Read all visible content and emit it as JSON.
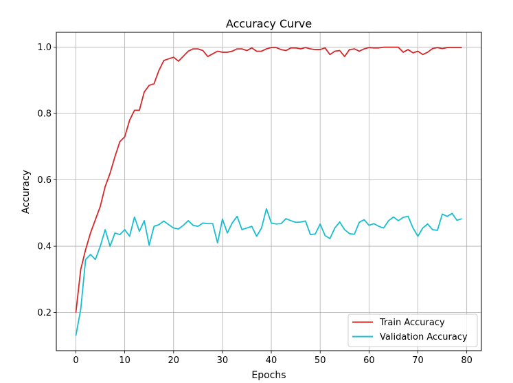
{
  "chart_data": {
    "type": "line",
    "title": "Accuracy Curve",
    "xlabel": "Epochs",
    "ylabel": "Accuracy",
    "xlim": [
      -4,
      83
    ],
    "ylim": [
      0.085,
      1.045
    ],
    "xticks": [
      0,
      10,
      20,
      30,
      40,
      50,
      60,
      70,
      80
    ],
    "yticks": [
      0.2,
      0.4,
      0.6,
      0.8,
      1.0
    ],
    "xtick_labels": [
      "0",
      "10",
      "20",
      "30",
      "40",
      "50",
      "60",
      "70",
      "80"
    ],
    "ytick_labels": [
      "0.2",
      "0.4",
      "0.6",
      "0.8",
      "1.0"
    ],
    "grid": true,
    "legend_position": "lower-right",
    "x": [
      0,
      1,
      2,
      3,
      4,
      5,
      6,
      7,
      8,
      9,
      10,
      11,
      12,
      13,
      14,
      15,
      16,
      17,
      18,
      19,
      20,
      21,
      22,
      23,
      24,
      25,
      26,
      27,
      28,
      29,
      30,
      31,
      32,
      33,
      34,
      35,
      36,
      37,
      38,
      39,
      40,
      41,
      42,
      43,
      44,
      45,
      46,
      47,
      48,
      49,
      50,
      51,
      52,
      53,
      54,
      55,
      56,
      57,
      58,
      59,
      60,
      61,
      62,
      63,
      64,
      65,
      66,
      67,
      68,
      69,
      70,
      71,
      72,
      73,
      74,
      75,
      76,
      77,
      78,
      79
    ],
    "series": [
      {
        "name": "Train Accuracy",
        "color": "#d62728",
        "values": [
          0.2,
          0.33,
          0.39,
          0.44,
          0.48,
          0.52,
          0.58,
          0.62,
          0.67,
          0.715,
          0.73,
          0.78,
          0.81,
          0.81,
          0.865,
          0.885,
          0.89,
          0.93,
          0.96,
          0.965,
          0.97,
          0.958,
          0.973,
          0.988,
          0.995,
          0.995,
          0.99,
          0.972,
          0.98,
          0.988,
          0.985,
          0.985,
          0.988,
          0.995,
          0.995,
          0.99,
          0.998,
          0.988,
          0.988,
          0.995,
          0.999,
          0.999,
          0.993,
          0.99,
          0.998,
          0.998,
          0.995,
          0.999,
          0.995,
          0.993,
          0.993,
          0.998,
          0.978,
          0.988,
          0.99,
          0.972,
          0.993,
          0.995,
          0.988,
          0.995,
          0.999,
          0.998,
          0.998,
          1.0,
          1.0,
          1.0,
          1.0,
          0.985,
          0.993,
          0.983,
          0.988,
          0.978,
          0.985,
          0.996,
          0.999,
          0.996,
          0.999,
          0.999,
          0.999,
          0.999
        ]
      },
      {
        "name": "Validation Accuracy",
        "color": "#17becf",
        "values": [
          0.13,
          0.21,
          0.36,
          0.375,
          0.36,
          0.4,
          0.45,
          0.4,
          0.44,
          0.435,
          0.45,
          0.43,
          0.488,
          0.445,
          0.477,
          0.403,
          0.46,
          0.465,
          0.476,
          0.465,
          0.455,
          0.452,
          0.463,
          0.477,
          0.463,
          0.46,
          0.47,
          0.468,
          0.468,
          0.41,
          0.482,
          0.44,
          0.47,
          0.49,
          0.45,
          0.455,
          0.46,
          0.43,
          0.455,
          0.513,
          0.47,
          0.467,
          0.468,
          0.483,
          0.477,
          0.472,
          0.473,
          0.476,
          0.435,
          0.437,
          0.467,
          0.432,
          0.423,
          0.455,
          0.473,
          0.45,
          0.438,
          0.436,
          0.472,
          0.48,
          0.463,
          0.468,
          0.46,
          0.455,
          0.477,
          0.488,
          0.477,
          0.487,
          0.49,
          0.455,
          0.43,
          0.455,
          0.467,
          0.45,
          0.448,
          0.497,
          0.49,
          0.499,
          0.478,
          0.483
        ]
      }
    ]
  }
}
